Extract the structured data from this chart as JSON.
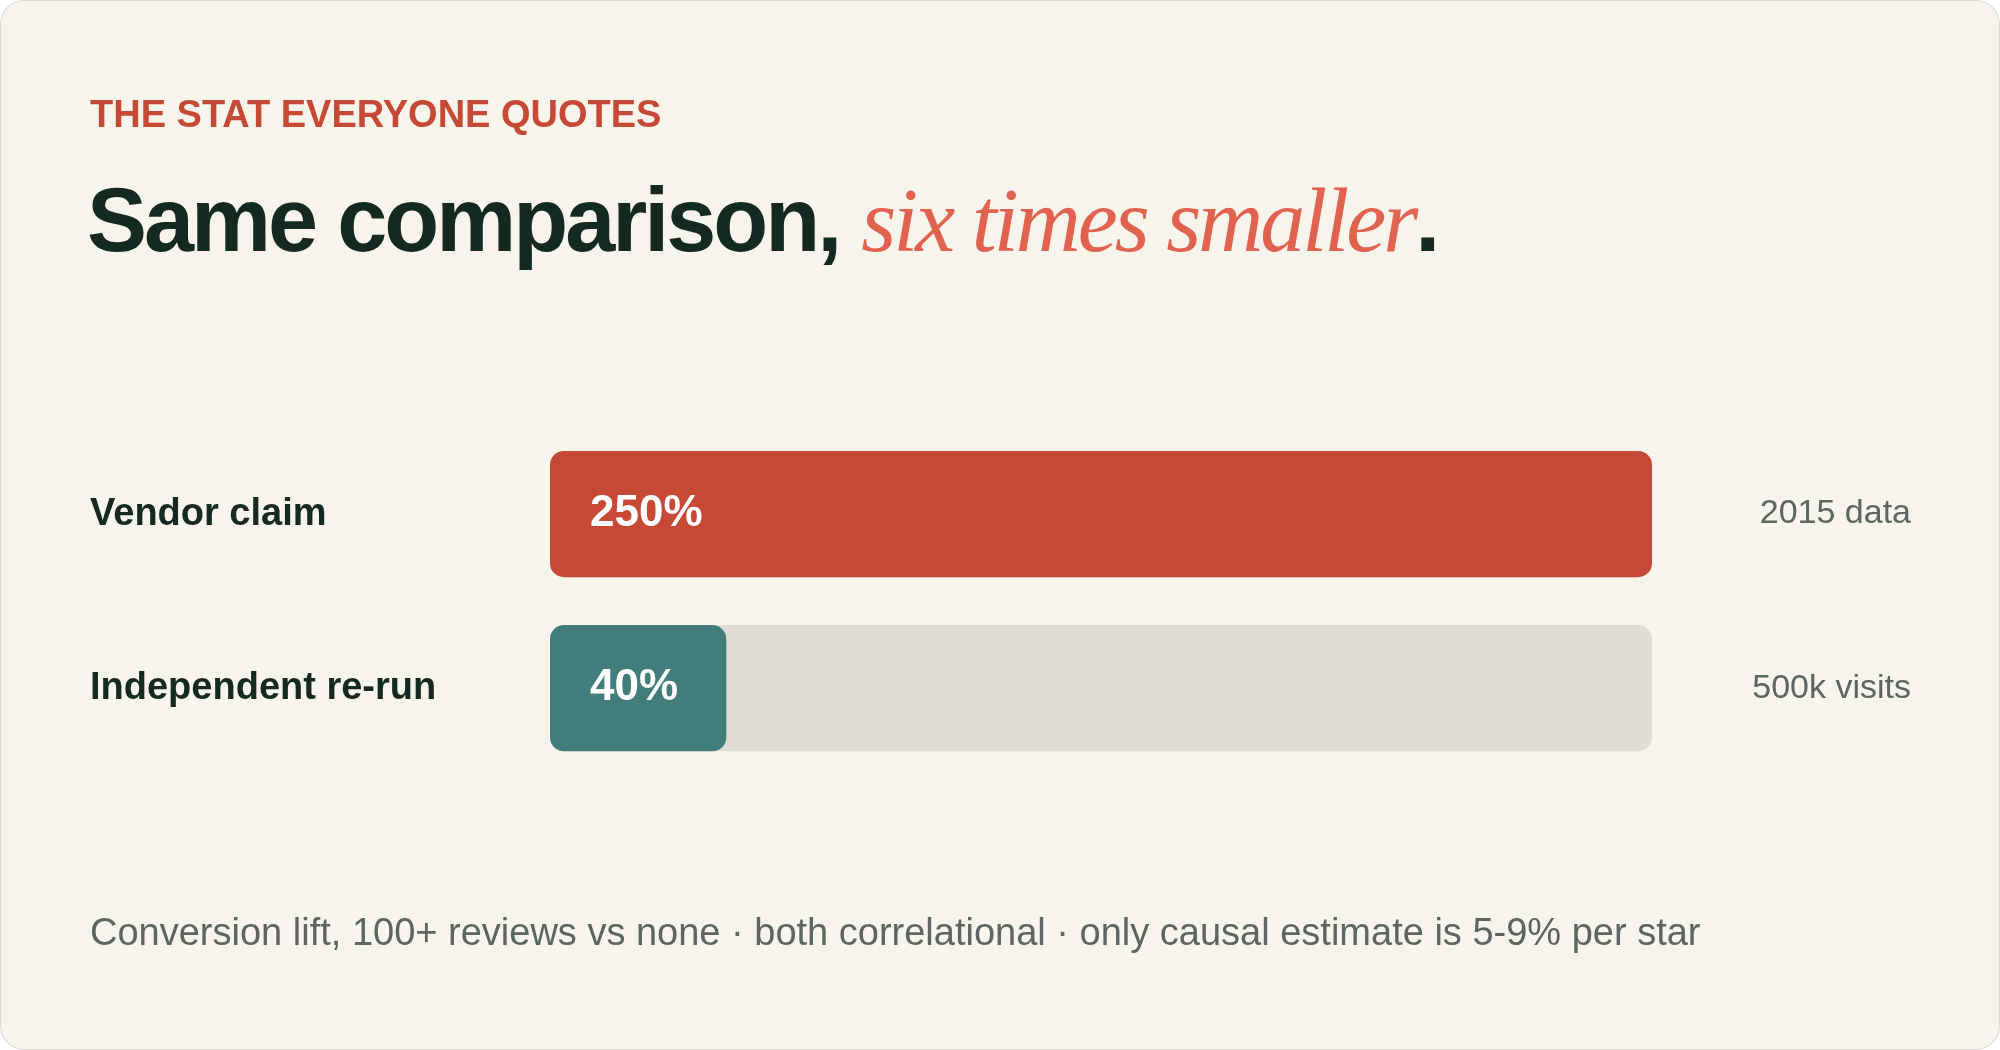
{
  "chart_data": {
    "type": "bar",
    "orientation": "horizontal",
    "subtitle": "THE STAT EVERYONE QUOTES",
    "title": "Same comparison, six times smaller.",
    "categories": [
      "Vendor claim",
      "Independent re-run"
    ],
    "values": [
      250,
      40
    ],
    "colors": [
      "#c54934",
      "#417d7a"
    ],
    "value_labels": [
      "250%",
      "40%"
    ],
    "xlim": [
      0,
      250
    ],
    "tick_labels": "y",
    "legend": false,
    "annotations": [
      "2015 data",
      "500k visits",
      "Conversion lift, 100+ reviews vs none · both correlational · only causal estimate is 5-9% per star"
    ]
  }
}
